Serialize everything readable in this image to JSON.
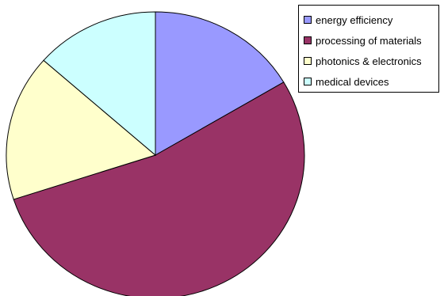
{
  "chart_data": {
    "type": "pie",
    "start_angle_deg": 0,
    "direction": "clockwise",
    "legend_position": "top-right",
    "slices": [
      {
        "label": "energy efficiency",
        "value": 16.5,
        "color": "#9999ff"
      },
      {
        "label": "processing of materials",
        "value": 53.5,
        "color": "#993366"
      },
      {
        "label": "photonics & electronics",
        "value": 16.5,
        "color": "#ffffcc"
      },
      {
        "label": "medical devices",
        "value": 13.5,
        "color": "#ccffff"
      }
    ]
  }
}
